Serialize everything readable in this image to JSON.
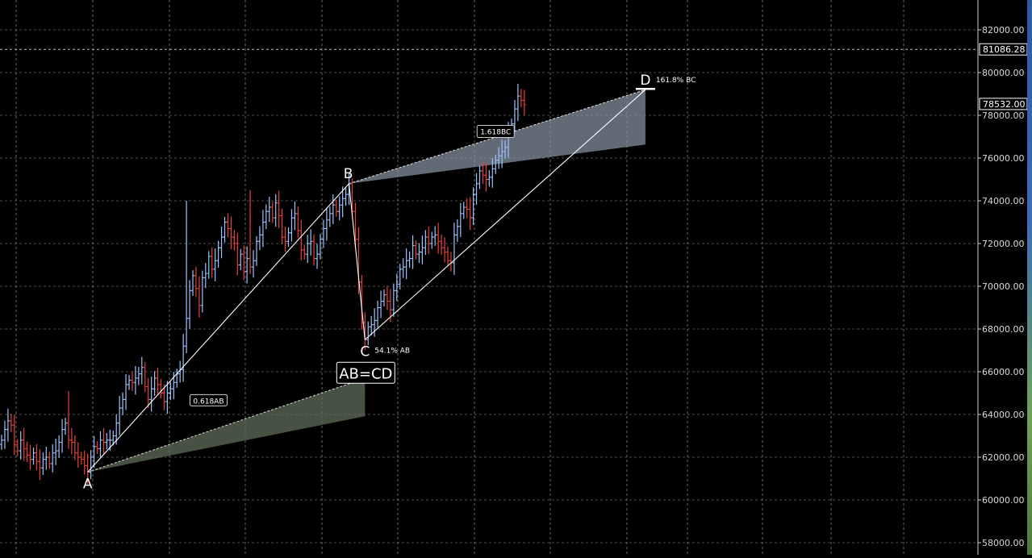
{
  "colors": {
    "background": "#000000",
    "grid": "#8a8a8a",
    "up_bar": "#9cc3ff",
    "down_bar": "#e8413b",
    "pattern_line": "#ffffff",
    "projection_fill_lower": "#5f6e58",
    "projection_fill_upper": "#8a97a6"
  },
  "y_axis": {
    "ticks": [
      "82000.00",
      "80000.00",
      "78000.00",
      "76000.00",
      "74000.00",
      "72000.00",
      "70000.00",
      "68000.00",
      "66000.00",
      "64000.00",
      "62000.00",
      "60000.00",
      "58000.00"
    ],
    "crosshair_price_label": "81086.28",
    "last_price_label": "78532.00"
  },
  "pattern": {
    "label_a": "A",
    "label_b": "B",
    "label_c": "C",
    "label_d": "D",
    "label_c_ratio": "54.1% AB",
    "label_d_ratio": "161.8% BC",
    "label_abcd": "AB=CD",
    "label_0618ab": "0.618AB",
    "label_1618bc": "1.618BC"
  },
  "chart_data": {
    "type": "ohlc",
    "ylim": [
      57500,
      83100
    ],
    "grid": true,
    "crosshair_price": 81086.28,
    "last_price": 78532.0,
    "pattern_points": {
      "A": {
        "bar": 27,
        "price": 61300
      },
      "B": {
        "bar": 109,
        "price": 74800
      },
      "C": {
        "bar": 114,
        "price": 67500
      },
      "D": {
        "bar": 202,
        "price": 79200
      }
    },
    "closes": [
      62800,
      63300,
      63700,
      63500,
      62600,
      62300,
      62800,
      62400,
      62100,
      61900,
      62200,
      61800,
      61500,
      61900,
      62000,
      61700,
      62200,
      62300,
      62700,
      63300,
      63600,
      62800,
      62700,
      62200,
      62000,
      61900,
      61600,
      61300,
      62000,
      62500,
      62400,
      62800,
      62700,
      62800,
      62800,
      63000,
      63600,
      64300,
      64700,
      65400,
      65600,
      65500,
      65700,
      65900,
      66200,
      65300,
      64700,
      65200,
      65700,
      65400,
      65000,
      64600,
      65000,
      65200,
      65500,
      65900,
      66100,
      67200,
      68500,
      69800,
      70500,
      69900,
      69100,
      70400,
      70600,
      71400,
      70800,
      71200,
      71800,
      72300,
      73000,
      72700,
      72300,
      72000,
      71000,
      71500,
      70700,
      71300,
      70900,
      71200,
      72100,
      72400,
      73000,
      73500,
      73700,
      73200,
      73900,
      73300,
      72300,
      72100,
      72500,
      73200,
      73400,
      72600,
      71700,
      71500,
      72000,
      72100,
      71300,
      71500,
      72200,
      72700,
      73100,
      73400,
      73800,
      73500,
      73800,
      74100,
      74300,
      74800,
      73500,
      72200,
      70200,
      68300,
      67500,
      68100,
      68200,
      68400,
      69000,
      69300,
      69600,
      69300,
      68900,
      69800,
      70100,
      70800,
      70900,
      71200,
      71300,
      71900,
      71500,
      71600,
      71800,
      72300,
      72000,
      72300,
      72400,
      72100,
      71800,
      71600,
      71200,
      71100,
      72400,
      72800,
      73400,
      73700,
      73600,
      73200,
      74300,
      74800,
      75400,
      75200,
      75000,
      75100,
      75500,
      75900,
      76100,
      76300,
      76500,
      77200,
      77600,
      78300,
      78900,
      78700,
      78500
    ]
  }
}
